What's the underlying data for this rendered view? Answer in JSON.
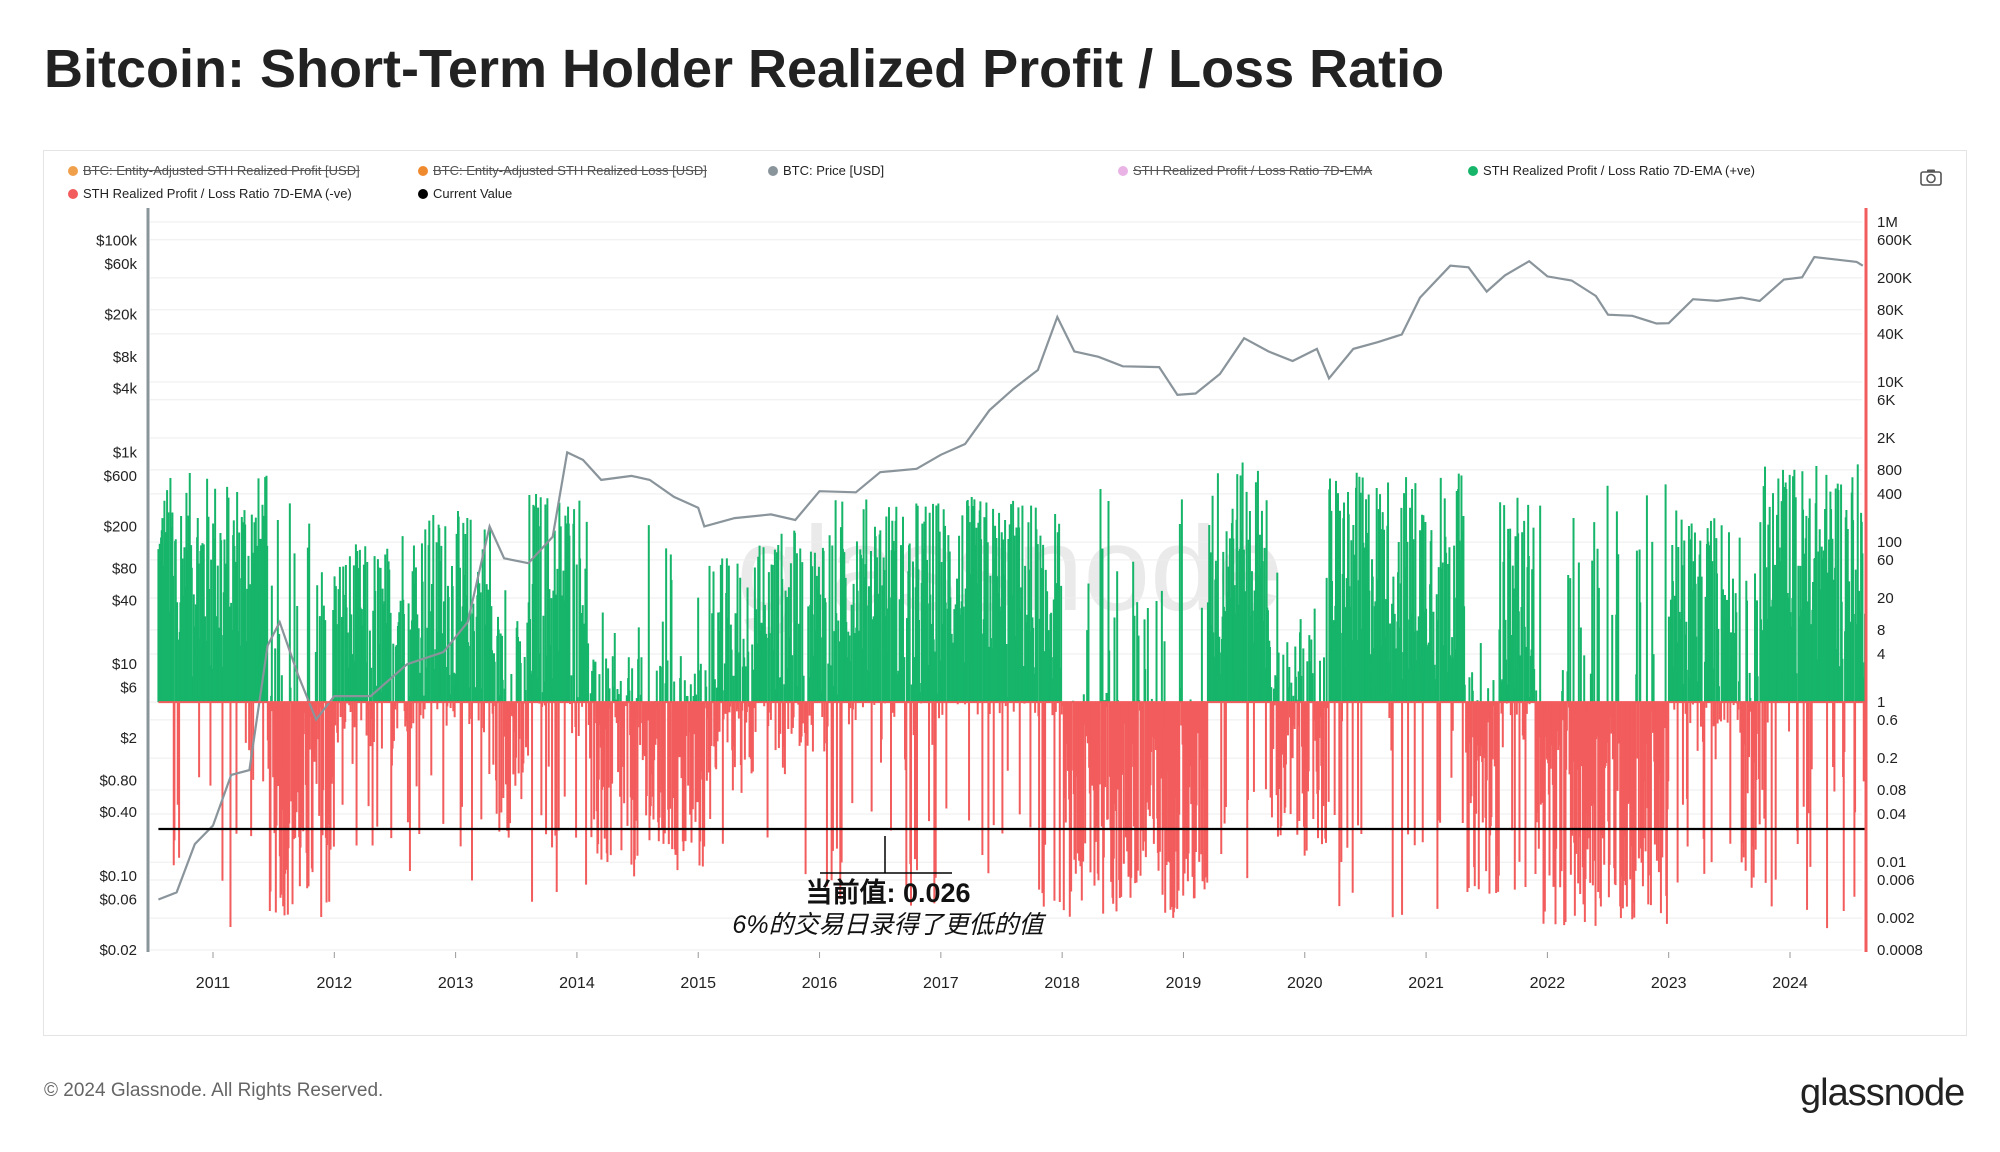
{
  "title": "Bitcoin: Short-Term Holder Realized Profit / Loss Ratio",
  "footer": "© 2024 Glassnode. All Rights Reserved.",
  "brand": "glassnode",
  "watermark": "glassnode",
  "legend": [
    {
      "label": "BTC: Entity-Adjusted STH Realized Profit [USD]",
      "color": "#f0a04b",
      "struck": true
    },
    {
      "label": "BTC: Entity-Adjusted STH Realized Loss [USD]",
      "color": "#f08a2e",
      "struck": true
    },
    {
      "label": "BTC: Price [USD]",
      "color": "#8a949b",
      "struck": false
    },
    {
      "label": "STH Realized Profit / Loss Ratio 7D-EMA",
      "color": "#e9b3e6",
      "struck": true
    },
    {
      "label": "STH Realized Profit / Loss Ratio 7D-EMA (+ve)",
      "color": "#16b56a",
      "struck": false
    },
    {
      "label": "STH Realized Profit / Loss Ratio 7D-EMA (-ve)",
      "color": "#f25c5c",
      "struck": false
    },
    {
      "label": "Current Value",
      "color": "#000000",
      "struck": false
    }
  ],
  "annotation": {
    "value_label": "当前值: 0.026",
    "note": "6%的交易日录得了更低的值"
  },
  "colors": {
    "price": "#8a949b",
    "positive": "#16b56a",
    "negative": "#f25c5c",
    "current_value": "#000000",
    "baseline": "#f25c5c",
    "left_axis": "#8a949b",
    "right_axis": "#f25c5c"
  },
  "chart_data": {
    "type": "bar",
    "title": "Bitcoin: Short-Term Holder Realized Profit / Loss Ratio",
    "x_range": [
      "2010-07",
      "2024-08"
    ],
    "x_ticks": [
      "2011",
      "2012",
      "2013",
      "2014",
      "2015",
      "2016",
      "2017",
      "2018",
      "2019",
      "2020",
      "2021",
      "2022",
      "2023",
      "2024"
    ],
    "left_axis": {
      "scale": "log",
      "range": [
        0.02,
        150000
      ],
      "ticks": [
        {
          "value": 100000,
          "label": "$100k"
        },
        {
          "value": 60000,
          "label": "$60k"
        },
        {
          "value": 20000,
          "label": "$20k"
        },
        {
          "value": 8000,
          "label": "$8k"
        },
        {
          "value": 4000,
          "label": "$4k"
        },
        {
          "value": 1000,
          "label": "$1k"
        },
        {
          "value": 600,
          "label": "$600"
        },
        {
          "value": 200,
          "label": "$200"
        },
        {
          "value": 80,
          "label": "$80"
        },
        {
          "value": 40,
          "label": "$40"
        },
        {
          "value": 10,
          "label": "$10"
        },
        {
          "value": 6,
          "label": "$6"
        },
        {
          "value": 2,
          "label": "$2"
        },
        {
          "value": 0.8,
          "label": "$0.80"
        },
        {
          "value": 0.4,
          "label": "$0.40"
        },
        {
          "value": 0.1,
          "label": "$0.10"
        },
        {
          "value": 0.06,
          "label": "$0.06"
        },
        {
          "value": 0.02,
          "label": "$0.02"
        }
      ]
    },
    "right_axis": {
      "scale": "log",
      "range": [
        0.0008,
        1000000
      ],
      "ticks": [
        {
          "value": 1000000,
          "label": "1M"
        },
        {
          "value": 600000,
          "label": "600K"
        },
        {
          "value": 200000,
          "label": "200K"
        },
        {
          "value": 80000,
          "label": "80K"
        },
        {
          "value": 40000,
          "label": "40K"
        },
        {
          "value": 10000,
          "label": "10K"
        },
        {
          "value": 6000,
          "label": "6K"
        },
        {
          "value": 2000,
          "label": "2K"
        },
        {
          "value": 800,
          "label": "800"
        },
        {
          "value": 400,
          "label": "400"
        },
        {
          "value": 100,
          "label": "100"
        },
        {
          "value": 60,
          "label": "60"
        },
        {
          "value": 20,
          "label": "20"
        },
        {
          "value": 8,
          "label": "8"
        },
        {
          "value": 4,
          "label": "4"
        },
        {
          "value": 1,
          "label": "1"
        },
        {
          "value": 0.6,
          "label": "0.6"
        },
        {
          "value": 0.2,
          "label": "0.2"
        },
        {
          "value": 0.08,
          "label": "0.08"
        },
        {
          "value": 0.04,
          "label": "0.04"
        },
        {
          "value": 0.01,
          "label": "0.01"
        },
        {
          "value": 0.006,
          "label": "0.006"
        },
        {
          "value": 0.002,
          "label": "0.002"
        },
        {
          "value": 0.0008,
          "label": "0.0008"
        }
      ]
    },
    "current_value": 0.026,
    "baseline_ratio": 1,
    "price_series": [
      {
        "x": 2010.55,
        "y": 0.06
      },
      {
        "x": 2010.7,
        "y": 0.07
      },
      {
        "x": 2010.85,
        "y": 0.2
      },
      {
        "x": 2011.0,
        "y": 0.3
      },
      {
        "x": 2011.15,
        "y": 0.9
      },
      {
        "x": 2011.3,
        "y": 1.0
      },
      {
        "x": 2011.45,
        "y": 15
      },
      {
        "x": 2011.55,
        "y": 25
      },
      {
        "x": 2011.7,
        "y": 8
      },
      {
        "x": 2011.85,
        "y": 3
      },
      {
        "x": 2012.0,
        "y": 5
      },
      {
        "x": 2012.3,
        "y": 5
      },
      {
        "x": 2012.6,
        "y": 10
      },
      {
        "x": 2012.9,
        "y": 13
      },
      {
        "x": 2013.1,
        "y": 25
      },
      {
        "x": 2013.28,
        "y": 200
      },
      {
        "x": 2013.4,
        "y": 100
      },
      {
        "x": 2013.6,
        "y": 90
      },
      {
        "x": 2013.8,
        "y": 160
      },
      {
        "x": 2013.92,
        "y": 1000
      },
      {
        "x": 2014.05,
        "y": 850
      },
      {
        "x": 2014.2,
        "y": 550
      },
      {
        "x": 2014.45,
        "y": 600
      },
      {
        "x": 2014.6,
        "y": 550
      },
      {
        "x": 2014.8,
        "y": 380
      },
      {
        "x": 2015.0,
        "y": 300
      },
      {
        "x": 2015.05,
        "y": 200
      },
      {
        "x": 2015.3,
        "y": 240
      },
      {
        "x": 2015.6,
        "y": 260
      },
      {
        "x": 2015.8,
        "y": 230
      },
      {
        "x": 2016.0,
        "y": 430
      },
      {
        "x": 2016.3,
        "y": 420
      },
      {
        "x": 2016.5,
        "y": 650
      },
      {
        "x": 2016.8,
        "y": 700
      },
      {
        "x": 2017.0,
        "y": 950
      },
      {
        "x": 2017.2,
        "y": 1200
      },
      {
        "x": 2017.4,
        "y": 2500
      },
      {
        "x": 2017.6,
        "y": 4000
      },
      {
        "x": 2017.8,
        "y": 6000
      },
      {
        "x": 2017.96,
        "y": 19000
      },
      {
        "x": 2018.1,
        "y": 9000
      },
      {
        "x": 2018.3,
        "y": 8000
      },
      {
        "x": 2018.5,
        "y": 6500
      },
      {
        "x": 2018.8,
        "y": 6400
      },
      {
        "x": 2018.95,
        "y": 3500
      },
      {
        "x": 2019.1,
        "y": 3600
      },
      {
        "x": 2019.3,
        "y": 5500
      },
      {
        "x": 2019.5,
        "y": 12000
      },
      {
        "x": 2019.7,
        "y": 9000
      },
      {
        "x": 2019.9,
        "y": 7300
      },
      {
        "x": 2020.1,
        "y": 9500
      },
      {
        "x": 2020.2,
        "y": 5000
      },
      {
        "x": 2020.4,
        "y": 9500
      },
      {
        "x": 2020.6,
        "y": 11000
      },
      {
        "x": 2020.8,
        "y": 13000
      },
      {
        "x": 2020.95,
        "y": 29000
      },
      {
        "x": 2021.2,
        "y": 58000
      },
      {
        "x": 2021.35,
        "y": 56000
      },
      {
        "x": 2021.5,
        "y": 33000
      },
      {
        "x": 2021.65,
        "y": 47000
      },
      {
        "x": 2021.85,
        "y": 64000
      },
      {
        "x": 2022.0,
        "y": 46000
      },
      {
        "x": 2022.2,
        "y": 42000
      },
      {
        "x": 2022.4,
        "y": 30000
      },
      {
        "x": 2022.5,
        "y": 20000
      },
      {
        "x": 2022.7,
        "y": 19500
      },
      {
        "x": 2022.9,
        "y": 16500
      },
      {
        "x": 2023.0,
        "y": 16600
      },
      {
        "x": 2023.2,
        "y": 28000
      },
      {
        "x": 2023.4,
        "y": 27000
      },
      {
        "x": 2023.6,
        "y": 29000
      },
      {
        "x": 2023.75,
        "y": 27000
      },
      {
        "x": 2023.95,
        "y": 43000
      },
      {
        "x": 2024.1,
        "y": 45000
      },
      {
        "x": 2024.2,
        "y": 70000
      },
      {
        "x": 2024.4,
        "y": 66000
      },
      {
        "x": 2024.55,
        "y": 63000
      },
      {
        "x": 2024.6,
        "y": 58000
      }
    ],
    "ratio_regimes": [
      {
        "start": 2010.55,
        "end": 2011.45,
        "level": 30
      },
      {
        "start": 2011.45,
        "end": 2012.0,
        "level": 0.05
      },
      {
        "start": 2012.0,
        "end": 2012.5,
        "level": 4
      },
      {
        "start": 2012.5,
        "end": 2013.3,
        "level": 10
      },
      {
        "start": 2013.3,
        "end": 2013.6,
        "level": 0.5
      },
      {
        "start": 2013.6,
        "end": 2014.1,
        "level": 20
      },
      {
        "start": 2014.1,
        "end": 2015.1,
        "level": 0.15
      },
      {
        "start": 2015.1,
        "end": 2015.5,
        "level": 3
      },
      {
        "start": 2015.5,
        "end": 2016.0,
        "level": 6
      },
      {
        "start": 2016.0,
        "end": 2018.0,
        "level": 15
      },
      {
        "start": 2018.0,
        "end": 2019.2,
        "level": 0.05
      },
      {
        "start": 2019.2,
        "end": 2019.7,
        "level": 40
      },
      {
        "start": 2019.7,
        "end": 2020.2,
        "level": 0.3
      },
      {
        "start": 2020.2,
        "end": 2021.3,
        "level": 30
      },
      {
        "start": 2021.3,
        "end": 2021.6,
        "level": 0.1
      },
      {
        "start": 2021.6,
        "end": 2021.9,
        "level": 15
      },
      {
        "start": 2021.9,
        "end": 2023.0,
        "level": 0.04
      },
      {
        "start": 2023.0,
        "end": 2023.6,
        "level": 10
      },
      {
        "start": 2023.6,
        "end": 2023.75,
        "level": 0.1
      },
      {
        "start": 2023.75,
        "end": 2024.6,
        "level": 40
      }
    ],
    "legend_position": "top"
  }
}
